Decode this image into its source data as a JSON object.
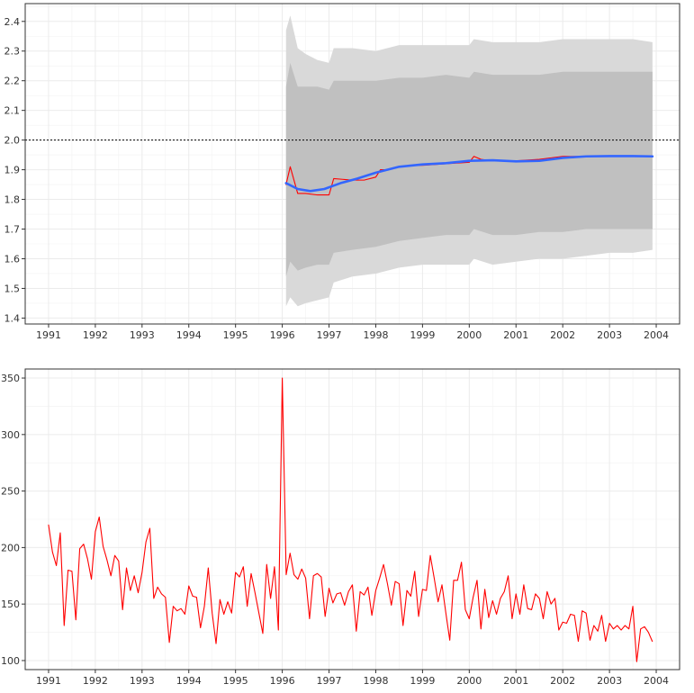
{
  "chart_data": [
    {
      "type": "line",
      "title": "",
      "xlabel": "",
      "ylabel": "",
      "xlim": [
        1990.5,
        2004.5
      ],
      "ylim": [
        1.38,
        2.46
      ],
      "x_ticks": [
        1991,
        1992,
        1993,
        1994,
        1995,
        1996,
        1997,
        1998,
        1999,
        2000,
        2001,
        2002,
        2003,
        2004
      ],
      "x_tick_labels": [
        "1991",
        "1992",
        "1993",
        "1994",
        "1995",
        "1996",
        "1997",
        "1998",
        "1999",
        "2000",
        "2001",
        "2002",
        "2003",
        "2004"
      ],
      "y_ticks": [
        1.4,
        1.5,
        1.6,
        1.7,
        1.8,
        1.9,
        2.0,
        2.1,
        2.2,
        2.3,
        2.4
      ],
      "y_tick_labels": [
        "1.4",
        "1.5",
        "1.6",
        "1.7",
        "1.8",
        "1.9",
        "2.0",
        "2.1",
        "2.2",
        "2.3",
        "2.4"
      ],
      "grid": true,
      "reference_line": {
        "y": 2.0,
        "style": "dotted",
        "color": "#000000"
      },
      "outer_band": {
        "color": "#d9d9d9",
        "x": [
          1996.08,
          1996.17,
          1996.33,
          1996.5,
          1996.75,
          1997.0,
          1997.1,
          1997.5,
          1998.0,
          1998.5,
          1999.0,
          1999.5,
          2000.0,
          2000.1,
          2000.5,
          2001.0,
          2001.5,
          2002.0,
          2002.5,
          2003.0,
          2003.5,
          2003.92
        ],
        "upper": [
          2.37,
          2.42,
          2.31,
          2.29,
          2.27,
          2.26,
          2.31,
          2.31,
          2.3,
          2.32,
          2.32,
          2.32,
          2.32,
          2.34,
          2.33,
          2.33,
          2.33,
          2.34,
          2.34,
          2.34,
          2.34,
          2.33
        ],
        "lower": [
          1.44,
          1.47,
          1.44,
          1.45,
          1.46,
          1.47,
          1.52,
          1.54,
          1.55,
          1.57,
          1.58,
          1.58,
          1.58,
          1.6,
          1.58,
          1.59,
          1.6,
          1.6,
          1.61,
          1.62,
          1.62,
          1.63
        ]
      },
      "inner_band": {
        "color": "#c0c0c0",
        "x": [
          1996.08,
          1996.17,
          1996.33,
          1996.5,
          1996.75,
          1997.0,
          1997.1,
          1997.5,
          1998.0,
          1998.5,
          1999.0,
          1999.5,
          2000.0,
          2000.1,
          2000.5,
          2001.0,
          2001.5,
          2002.0,
          2002.5,
          2003.0,
          2003.5,
          2003.92
        ],
        "upper": [
          2.18,
          2.26,
          2.18,
          2.18,
          2.18,
          2.17,
          2.2,
          2.2,
          2.2,
          2.21,
          2.21,
          2.22,
          2.21,
          2.23,
          2.22,
          2.22,
          2.22,
          2.23,
          2.23,
          2.23,
          2.23,
          2.23
        ],
        "lower": [
          1.54,
          1.59,
          1.56,
          1.57,
          1.58,
          1.58,
          1.62,
          1.63,
          1.64,
          1.66,
          1.67,
          1.68,
          1.68,
          1.7,
          1.68,
          1.68,
          1.69,
          1.69,
          1.7,
          1.7,
          1.7,
          1.7
        ]
      },
      "series": [
        {
          "color": "#ff0000",
          "x": [
            1996.08,
            1996.17,
            1996.33,
            1996.5,
            1996.75,
            1997.0,
            1997.1,
            1997.5,
            1997.75,
            1998.0,
            1998.1,
            1998.25,
            1998.5,
            1998.75,
            1999.0,
            1999.5,
            2000.0,
            2000.1,
            2000.25,
            2000.5,
            2001.0,
            2001.5,
            2002.0,
            2002.5,
            2003.0,
            2003.5,
            2003.92
          ],
          "y": [
            1.85,
            1.91,
            1.82,
            1.82,
            1.815,
            1.815,
            1.87,
            1.865,
            1.865,
            1.875,
            1.9,
            1.9,
            1.91,
            1.915,
            1.915,
            1.92,
            1.925,
            1.945,
            1.935,
            1.93,
            1.93,
            1.935,
            1.945,
            1.945,
            1.945,
            1.945,
            1.945
          ]
        },
        {
          "color": "#3366ff",
          "x": [
            1996.08,
            1996.33,
            1996.6,
            1996.9,
            1997.25,
            1997.6,
            1998.0,
            1998.5,
            1999.0,
            1999.5,
            2000.0,
            2000.5,
            2001.0,
            2001.5,
            2002.0,
            2002.5,
            2003.0,
            2003.5,
            2003.92
          ],
          "y": [
            1.855,
            1.835,
            1.828,
            1.835,
            1.855,
            1.87,
            1.89,
            1.91,
            1.918,
            1.922,
            1.93,
            1.932,
            1.928,
            1.93,
            1.94,
            1.945,
            1.946,
            1.946,
            1.945
          ]
        }
      ]
    },
    {
      "type": "line",
      "title": "",
      "xlabel": "",
      "ylabel": "",
      "xlim": [
        1990.5,
        2004.5
      ],
      "ylim": [
        92,
        358
      ],
      "x_ticks": [
        1991,
        1992,
        1993,
        1994,
        1995,
        1996,
        1997,
        1998,
        1999,
        2000,
        2001,
        2002,
        2003,
        2004
      ],
      "x_tick_labels": [
        "1991",
        "1992",
        "1993",
        "1994",
        "1995",
        "1996",
        "1997",
        "1998",
        "1999",
        "2000",
        "2001",
        "2002",
        "2003",
        "2004"
      ],
      "y_ticks": [
        100,
        150,
        200,
        250,
        300,
        350
      ],
      "y_tick_labels": [
        "100",
        "150",
        "200",
        "250",
        "300",
        "350"
      ],
      "grid": true,
      "series": [
        {
          "color": "#ff0000",
          "x_start": 1991.0,
          "x_step": 0.08333,
          "y": [
            220,
            196,
            184,
            213,
            131,
            180,
            179,
            136,
            199,
            203,
            190,
            172,
            214,
            227,
            201,
            189,
            175,
            193,
            188,
            145,
            182,
            162,
            175,
            160,
            178,
            205,
            217,
            155,
            165,
            159,
            156,
            116,
            148,
            144,
            146,
            141,
            166,
            157,
            156,
            129,
            148,
            182,
            142,
            115,
            154,
            141,
            152,
            142,
            178,
            174,
            183,
            148,
            177,
            160,
            142,
            124,
            185,
            155,
            183,
            127,
            350,
            176,
            195,
            176,
            172,
            181,
            173,
            137,
            175,
            177,
            174,
            139,
            164,
            151,
            159,
            160,
            149,
            161,
            167,
            126,
            161,
            158,
            165,
            140,
            162,
            173,
            185,
            168,
            149,
            170,
            168,
            131,
            162,
            157,
            179,
            139,
            163,
            162,
            193,
            173,
            152,
            167,
            142,
            118,
            171,
            171,
            187,
            145,
            137,
            156,
            171,
            128,
            163,
            138,
            153,
            141,
            155,
            161,
            175,
            137,
            159,
            141,
            167,
            146,
            145,
            159,
            155,
            137,
            161,
            150,
            155,
            127,
            134,
            133,
            141,
            140,
            117,
            144,
            142,
            118,
            131,
            126,
            140,
            117,
            133,
            128,
            131,
            127,
            131,
            128,
            148,
            99,
            128,
            130,
            125,
            117
          ]
        }
      ]
    }
  ]
}
